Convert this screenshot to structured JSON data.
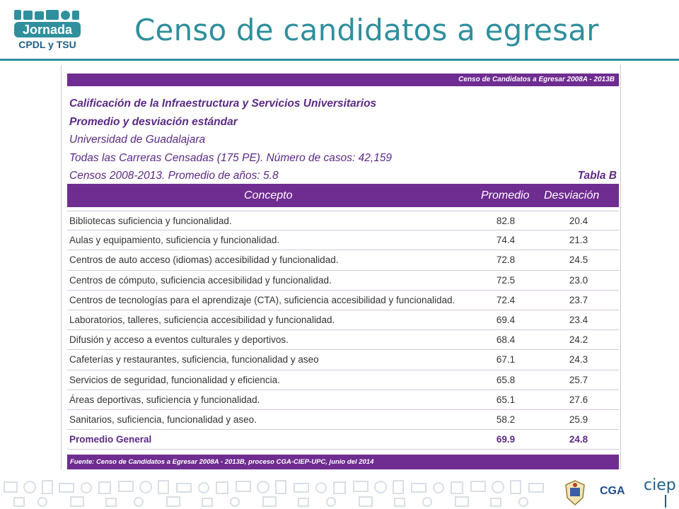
{
  "header": {
    "logo": {
      "line1": "Jornada",
      "line2": "CPDL y TSU"
    },
    "title": "Censo de candidatos a egresar"
  },
  "doc": {
    "top_band": "Censo de Candidatos a Egresar 2008A - 2013B",
    "info": [
      "Calificación de la Infraestructura y Servicios Universitarios",
      "Promedio y desviación estándar",
      " Universidad de Guadalajara",
      "Todas las Carreras Censadas (175 PE). Número de casos: 42,159",
      "Censos 2008-2013. Promedio de años: 5.8"
    ],
    "tabla_label": "Tabla B",
    "columns": {
      "concept": "Concepto",
      "promedio": "Promedio",
      "desviacion": "Desviación"
    },
    "rows": [
      {
        "concept": "Bibliotecas suficiencia y funcionalidad.",
        "promedio": "82.8",
        "desviacion": "20.4"
      },
      {
        "concept": "Aulas y equipamiento, suficiencia y funcionalidad.",
        "promedio": "74.4",
        "desviacion": "21.3"
      },
      {
        "concept": "Centros de auto acceso (idiomas) accesibilidad y funcionalidad.",
        "promedio": "72.8",
        "desviacion": "24.5"
      },
      {
        "concept": "Centros de cómputo, suficiencia accesibilidad y funcionalidad.",
        "promedio": "72.5",
        "desviacion": "23.0"
      },
      {
        "concept": "Centros de tecnologías para el aprendizaje (CTA), suficiencia accesibilidad y funcionalidad.",
        "promedio": "72.4",
        "desviacion": "23.7"
      },
      {
        "concept": "Laboratorios, talleres, suficiencia accesibilidad y funcionalidad.",
        "promedio": "69.4",
        "desviacion": "23.4"
      },
      {
        "concept": "Difusión y acceso a eventos culturales y deportivos.",
        "promedio": "68.4",
        "desviacion": "24.2"
      },
      {
        "concept": "Cafeterías y restaurantes, suficiencia, funcionalidad y aseo",
        "promedio": "67.1",
        "desviacion": "24.3"
      },
      {
        "concept": "Servicios de seguridad, funcionalidad y eficiencia.",
        "promedio": "65.8",
        "desviacion": "25.7"
      },
      {
        "concept": "Áreas deportivas, suficiencia y funcionalidad.",
        "promedio": "65.1",
        "desviacion": "27.6"
      },
      {
        "concept": "Sanitarios, suficiencia, funcionalidad y aseo.",
        "promedio": "58.2",
        "desviacion": "25.9"
      }
    ],
    "total": {
      "concept": "Promedio General",
      "promedio": "69.9",
      "desviacion": "24.8"
    },
    "footer": "Fuente: Censo de Candidatos a Egresar 2008A - 2013B,  proceso CGA-CIEP-UPC, junio del 2014"
  },
  "footer_logos": {
    "cga": "CGA",
    "ciep": "ciep"
  },
  "colors": {
    "teal": "#2f8f9d",
    "purple": "#6f2c91"
  }
}
